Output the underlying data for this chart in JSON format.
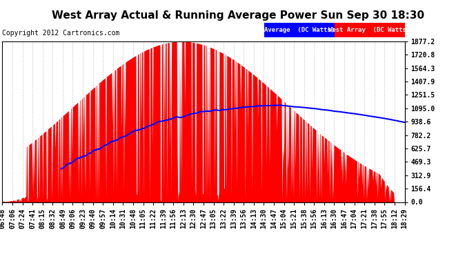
{
  "title": "West Array Actual & Running Average Power Sun Sep 30 18:30",
  "copyright": "Copyright 2012 Cartronics.com",
  "ylabel_values": [
    0.0,
    156.4,
    312.9,
    469.3,
    625.7,
    782.2,
    938.6,
    1095.0,
    1251.5,
    1407.9,
    1564.3,
    1720.8,
    1877.2
  ],
  "ymax": 1877.2,
  "ymin": 0.0,
  "xtick_labels": [
    "06:48",
    "07:06",
    "07:24",
    "07:41",
    "08:15",
    "08:32",
    "08:49",
    "09:06",
    "09:23",
    "09:40",
    "09:57",
    "10:14",
    "10:31",
    "10:48",
    "11:05",
    "11:22",
    "11:39",
    "11:56",
    "12:13",
    "12:30",
    "12:47",
    "13:05",
    "13:22",
    "13:39",
    "13:56",
    "14:13",
    "14:30",
    "14:47",
    "15:04",
    "15:21",
    "15:38",
    "15:56",
    "16:13",
    "16:30",
    "16:47",
    "17:04",
    "17:21",
    "17:38",
    "17:55",
    "18:12",
    "18:29"
  ],
  "bg_color": "#ffffff",
  "plot_bg_color": "#ffffff",
  "grid_color": "#c8c8c8",
  "bar_color": "#ff0000",
  "avg_color": "#0000ff",
  "legend_avg_bg": "#0000ff",
  "legend_bar_bg": "#ff0000",
  "title_fontsize": 11,
  "tick_fontsize": 7,
  "copyright_fontsize": 7
}
